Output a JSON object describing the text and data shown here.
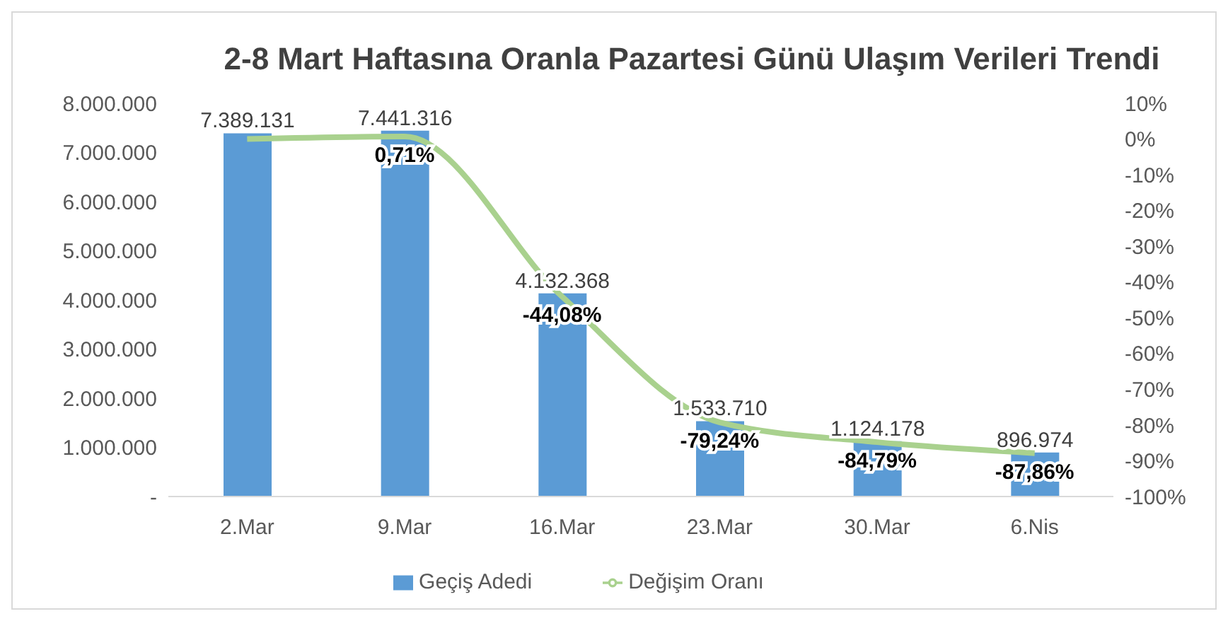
{
  "chart_data": {
    "type": "bar",
    "title": "2-8 Mart Haftasına Oranla Pazartesi Günü Ulaşım Verileri Trendi",
    "categories": [
      "2.Mar",
      "9.Mar",
      "16.Mar",
      "23.Mar",
      "30.Mar",
      "6.Nis"
    ],
    "series": [
      {
        "name": "Geçiş Adedi",
        "color": "#5b9bd5",
        "values": [
          7389131,
          7441316,
          4132368,
          1533710,
          1124178,
          896974
        ],
        "value_labels": [
          "7.389.131",
          "7.441.316",
          "4.132.368",
          "1.533.710",
          "1.124.178",
          "896.974"
        ]
      },
      {
        "name": "Değişim Oranı",
        "type": "line",
        "axis": "y2",
        "color": "#a9d18e",
        "values": [
          0,
          0.71,
          -44.08,
          -79.24,
          -84.79,
          -87.86
        ],
        "value_labels": [
          null,
          "0,71%",
          "-44,08%",
          "-79,24%",
          "-84,79%",
          "-87,86%"
        ]
      }
    ],
    "ylim": [
      0,
      8000000
    ],
    "yticks": [
      {
        "value": 0,
        "label": "-"
      },
      {
        "value": 1000000,
        "label": "1.000.000"
      },
      {
        "value": 2000000,
        "label": "2.000.000"
      },
      {
        "value": 3000000,
        "label": "3.000.000"
      },
      {
        "value": 4000000,
        "label": "4.000.000"
      },
      {
        "value": 5000000,
        "label": "5.000.000"
      },
      {
        "value": 6000000,
        "label": "6.000.000"
      },
      {
        "value": 7000000,
        "label": "7.000.000"
      },
      {
        "value": 8000000,
        "label": "8.000.000"
      }
    ],
    "y2lim": [
      -100,
      10
    ],
    "y2ticks": [
      {
        "value": 10,
        "label": "10%"
      },
      {
        "value": 0,
        "label": "0%"
      },
      {
        "value": -10,
        "label": "-10%"
      },
      {
        "value": -20,
        "label": "-20%"
      },
      {
        "value": -30,
        "label": "-30%"
      },
      {
        "value": -40,
        "label": "-40%"
      },
      {
        "value": -50,
        "label": "-50%"
      },
      {
        "value": -60,
        "label": "-60%"
      },
      {
        "value": -70,
        "label": "-70%"
      },
      {
        "value": -80,
        "label": "-80%"
      },
      {
        "value": -90,
        "label": "-90%"
      },
      {
        "value": -100,
        "label": "-100%"
      }
    ],
    "legend": "bottom"
  }
}
